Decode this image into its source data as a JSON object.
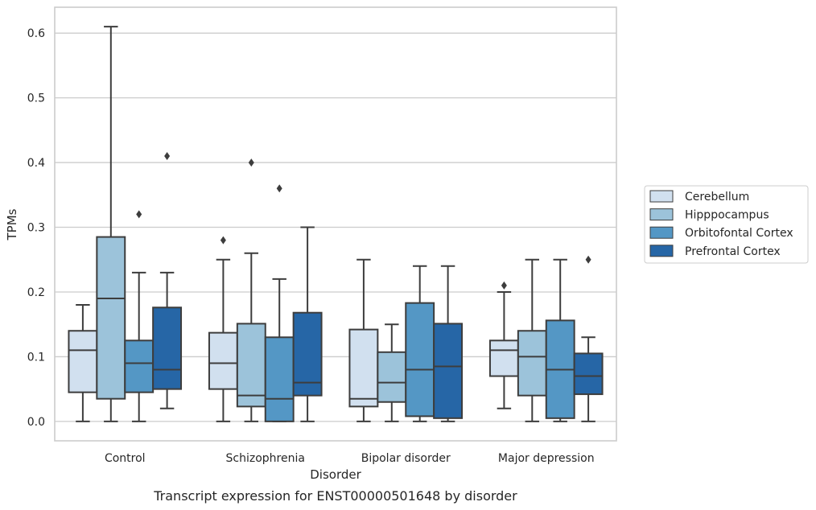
{
  "chart_data": {
    "type": "boxplot",
    "caption": "Transcript expression for ENST00000501648 by disorder",
    "xlabel": "Disorder",
    "ylabel": "TPMs",
    "ylim": [
      -0.03,
      0.64
    ],
    "yticks": [
      "0.0",
      "0.1",
      "0.2",
      "0.3",
      "0.4",
      "0.5",
      "0.6"
    ],
    "grid": "horizontal",
    "legend_position": "right",
    "categories": [
      "Control",
      "Schizophrenia",
      "Bipolar disorder",
      "Major depression"
    ],
    "series": [
      {
        "name": "Cerebellum",
        "color": "#d1e0ef",
        "boxes": [
          {
            "whislo": 0.0,
            "q1": 0.045,
            "med": 0.11,
            "q3": 0.14,
            "whishi": 0.18,
            "fliers": []
          },
          {
            "whislo": 0.0,
            "q1": 0.05,
            "med": 0.09,
            "q3": 0.137,
            "whishi": 0.25,
            "fliers": [
              0.28
            ]
          },
          {
            "whislo": 0.0,
            "q1": 0.023,
            "med": 0.035,
            "q3": 0.142,
            "whishi": 0.25,
            "fliers": []
          },
          {
            "whislo": 0.02,
            "q1": 0.07,
            "med": 0.11,
            "q3": 0.125,
            "whishi": 0.2,
            "fliers": [
              0.21
            ]
          }
        ]
      },
      {
        "name": "Hipppocampus",
        "color": "#9cc3da",
        "boxes": [
          {
            "whislo": 0.0,
            "q1": 0.035,
            "med": 0.19,
            "q3": 0.285,
            "whishi": 0.61,
            "fliers": []
          },
          {
            "whislo": 0.0,
            "q1": 0.023,
            "med": 0.04,
            "q3": 0.151,
            "whishi": 0.26,
            "fliers": [
              0.4
            ]
          },
          {
            "whislo": 0.0,
            "q1": 0.03,
            "med": 0.06,
            "q3": 0.107,
            "whishi": 0.15,
            "fliers": []
          },
          {
            "whislo": 0.0,
            "q1": 0.04,
            "med": 0.1,
            "q3": 0.14,
            "whishi": 0.25,
            "fliers": []
          }
        ]
      },
      {
        "name": "Orbitofontal Cortex",
        "color": "#5497c5",
        "boxes": [
          {
            "whislo": 0.0,
            "q1": 0.045,
            "med": 0.09,
            "q3": 0.125,
            "whishi": 0.23,
            "fliers": [
              0.32
            ]
          },
          {
            "whislo": 0.0,
            "q1": 0.0,
            "med": 0.035,
            "q3": 0.13,
            "whishi": 0.22,
            "fliers": [
              0.36
            ]
          },
          {
            "whislo": 0.0,
            "q1": 0.008,
            "med": 0.08,
            "q3": 0.183,
            "whishi": 0.24,
            "fliers": []
          },
          {
            "whislo": 0.0,
            "q1": 0.005,
            "med": 0.08,
            "q3": 0.156,
            "whishi": 0.25,
            "fliers": []
          }
        ]
      },
      {
        "name": "Prefrontal Cortex",
        "color": "#2666a6",
        "boxes": [
          {
            "whislo": 0.02,
            "q1": 0.05,
            "med": 0.08,
            "q3": 0.176,
            "whishi": 0.23,
            "fliers": [
              0.41
            ]
          },
          {
            "whislo": 0.0,
            "q1": 0.04,
            "med": 0.06,
            "q3": 0.168,
            "whishi": 0.3,
            "fliers": []
          },
          {
            "whislo": 0.0,
            "q1": 0.005,
            "med": 0.085,
            "q3": 0.151,
            "whishi": 0.24,
            "fliers": []
          },
          {
            "whislo": 0.0,
            "q1": 0.042,
            "med": 0.07,
            "q3": 0.105,
            "whishi": 0.13,
            "fliers": [
              0.25
            ]
          }
        ]
      }
    ]
  }
}
